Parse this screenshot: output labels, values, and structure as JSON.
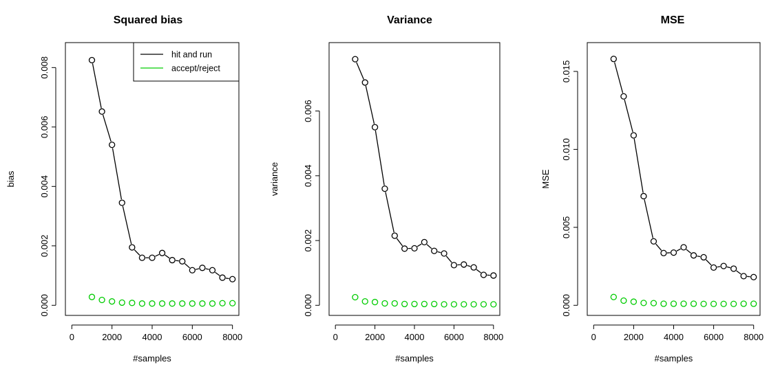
{
  "chart_data": [
    {
      "type": "line",
      "title": "Squared bias",
      "xlabel": "#samples",
      "ylabel": "bias",
      "xlim": [
        0,
        8000
      ],
      "ylim": [
        0,
        0.0085
      ],
      "x_ticks": [
        "0",
        "2000",
        "4000",
        "6000",
        "8000"
      ],
      "y_ticks": [
        "0.000",
        "0.002",
        "0.004",
        "0.006",
        "0.008"
      ],
      "legend": {
        "placement": "top-right",
        "entries": [
          "hit and run",
          "accept/reject"
        ]
      },
      "x": [
        1000,
        1500,
        2000,
        2500,
        3000,
        3500,
        4000,
        4500,
        5000,
        5500,
        6000,
        6500,
        7000,
        7500,
        8000
      ],
      "series": [
        {
          "name": "hit and run",
          "color": "#000000",
          "values": [
            0.00825,
            0.00652,
            0.0054,
            0.00345,
            0.00195,
            0.0016,
            0.0016,
            0.00176,
            0.00152,
            0.00148,
            0.00118,
            0.00126,
            0.00118,
            0.00093,
            0.00088
          ]
        },
        {
          "name": "accept/reject",
          "color": "#00cc00",
          "values": [
            0.00028,
            0.00018,
            0.00013,
            9e-05,
            8e-05,
            6e-05,
            6e-05,
            6e-05,
            6e-05,
            6e-05,
            6e-05,
            6e-05,
            6e-05,
            7e-05,
            7e-05
          ]
        }
      ]
    },
    {
      "type": "line",
      "title": "Variance",
      "xlabel": "#samples",
      "ylabel": "variance",
      "xlim": [
        0,
        8000
      ],
      "ylim": [
        0,
        0.0078
      ],
      "x_ticks": [
        "0",
        "2000",
        "4000",
        "6000",
        "8000"
      ],
      "y_ticks": [
        "0.000",
        "0.002",
        "0.004",
        "0.006"
      ],
      "x": [
        1000,
        1500,
        2000,
        2500,
        3000,
        3500,
        4000,
        4500,
        5000,
        5500,
        6000,
        6500,
        7000,
        7500,
        8000
      ],
      "series": [
        {
          "name": "hit and run",
          "color": "#000000",
          "values": [
            0.0076,
            0.00688,
            0.0055,
            0.0036,
            0.00215,
            0.00175,
            0.00176,
            0.00195,
            0.00168,
            0.0016,
            0.00124,
            0.00126,
            0.00117,
            0.00094,
            0.00092
          ]
        },
        {
          "name": "accept/reject",
          "color": "#00cc00",
          "values": [
            0.00025,
            0.00012,
            0.0001,
            6e-05,
            6e-05,
            4e-05,
            4e-05,
            4e-05,
            4e-05,
            3e-05,
            3e-05,
            3e-05,
            3e-05,
            3e-05,
            3e-05
          ]
        }
      ]
    },
    {
      "type": "line",
      "title": "MSE",
      "xlabel": "#samples",
      "ylabel": "MSE",
      "xlim": [
        0,
        8000
      ],
      "ylim": [
        0,
        0.0162
      ],
      "x_ticks": [
        "0",
        "2000",
        "4000",
        "6000",
        "8000"
      ],
      "y_ticks": [
        "0.000",
        "0.005",
        "0.010",
        "0.015"
      ],
      "x": [
        1000,
        1500,
        2000,
        2500,
        3000,
        3500,
        4000,
        4500,
        5000,
        5500,
        6000,
        6500,
        7000,
        7500,
        8000
      ],
      "series": [
        {
          "name": "hit and run",
          "color": "#000000",
          "values": [
            0.0158,
            0.0134,
            0.0109,
            0.007,
            0.0041,
            0.00335,
            0.00338,
            0.00372,
            0.0032,
            0.00308,
            0.00242,
            0.00252,
            0.00235,
            0.00187,
            0.00181
          ]
        },
        {
          "name": "accept/reject",
          "color": "#00cc00",
          "values": [
            0.00053,
            0.0003,
            0.00023,
            0.00015,
            0.00014,
            0.0001,
            0.0001,
            0.0001,
            0.0001,
            9e-05,
            9e-05,
            9e-05,
            9e-05,
            0.0001,
            0.0001
          ]
        }
      ]
    }
  ]
}
